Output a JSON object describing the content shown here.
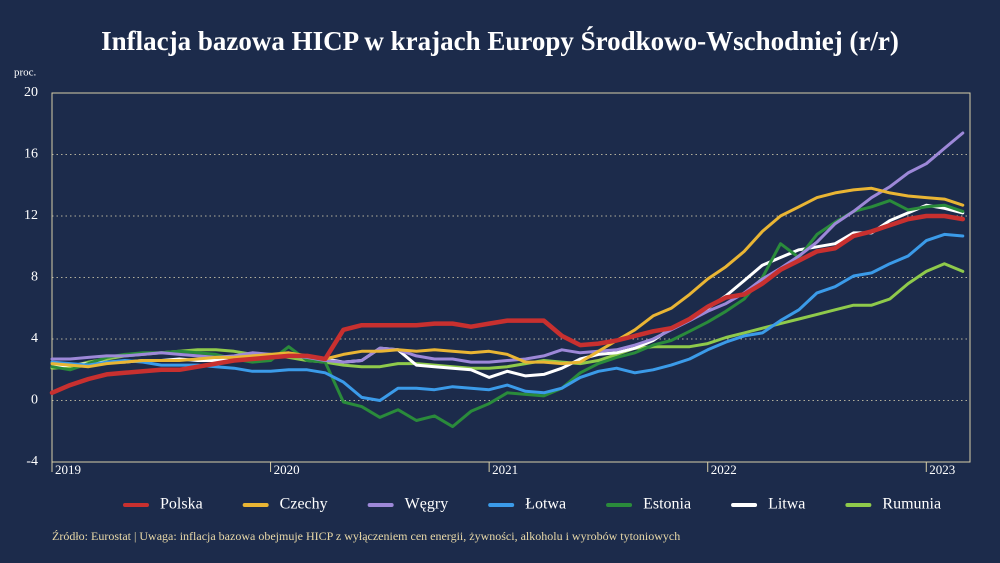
{
  "chart_data": {
    "type": "line",
    "title": "Inflacja bazowa HICP w krajach Europy Środkowo-Wschodniej (r/r)",
    "y_label": "proc.",
    "source": "Źródło: Eurostat  |  Uwaga: inflacja bazowa obejmuje HICP z wyłączeniem cen energii, żywności, alkoholu i wyrobów tytoniowych",
    "x": [
      2019,
      2019.083,
      2019.167,
      2019.25,
      2019.333,
      2019.417,
      2019.5,
      2019.583,
      2019.667,
      2019.75,
      2019.833,
      2019.917,
      2020,
      2020.083,
      2020.167,
      2020.25,
      2020.333,
      2020.417,
      2020.5,
      2020.583,
      2020.667,
      2020.75,
      2020.833,
      2020.917,
      2021,
      2021.083,
      2021.167,
      2021.25,
      2021.333,
      2021.417,
      2021.5,
      2021.583,
      2021.667,
      2021.75,
      2021.833,
      2021.917,
      2022,
      2022.083,
      2022.167,
      2022.25,
      2022.333,
      2022.417,
      2022.5,
      2022.583,
      2022.667,
      2022.75,
      2022.833,
      2022.917,
      2023,
      2023.083,
      2023.167
    ],
    "xlim": [
      2019,
      2023.2
    ],
    "xticks": [
      2019,
      2020,
      2021,
      2022,
      2023
    ],
    "ylim": [
      -4,
      20
    ],
    "yticks": [
      -4,
      0,
      4,
      8,
      12,
      16,
      20
    ],
    "grid": true,
    "series": [
      {
        "name": "Polska",
        "color": "#c8302f",
        "values": [
          0.5,
          1.0,
          1.4,
          1.7,
          1.8,
          1.9,
          2.0,
          2.0,
          2.2,
          2.4,
          2.6,
          2.7,
          2.8,
          2.9,
          2.9,
          2.7,
          4.6,
          4.9,
          4.9,
          4.9,
          4.9,
          5.0,
          5.0,
          4.8,
          5.0,
          5.2,
          5.2,
          5.2,
          4.2,
          3.6,
          3.7,
          3.9,
          4.2,
          4.5,
          4.7,
          5.3,
          6.1,
          6.7,
          6.9,
          7.6,
          8.5,
          9.1,
          9.7,
          9.9,
          10.7,
          11.0,
          11.4,
          11.8,
          12.0,
          12.0,
          11.8
        ]
      },
      {
        "name": "Czechy",
        "color": "#e9b534",
        "values": [
          2.4,
          2.3,
          2.2,
          2.4,
          2.5,
          2.6,
          2.6,
          2.6,
          2.7,
          2.8,
          2.8,
          2.9,
          3.0,
          3.1,
          2.9,
          2.7,
          3.0,
          3.2,
          3.2,
          3.3,
          3.2,
          3.3,
          3.2,
          3.1,
          3.2,
          3.0,
          2.5,
          2.5,
          2.4,
          2.5,
          3.2,
          3.9,
          4.6,
          5.5,
          6.0,
          6.9,
          7.9,
          8.7,
          9.7,
          11.0,
          12.0,
          12.6,
          13.2,
          13.5,
          13.7,
          13.8,
          13.5,
          13.3,
          13.2,
          13.1,
          12.7
        ]
      },
      {
        "name": "Węgry",
        "color": "#9d88d8",
        "values": [
          2.7,
          2.7,
          2.8,
          2.9,
          2.9,
          3.0,
          3.1,
          3.0,
          2.9,
          2.8,
          2.9,
          3.1,
          3.0,
          2.9,
          2.8,
          2.6,
          2.5,
          2.6,
          3.4,
          3.3,
          2.9,
          2.7,
          2.7,
          2.5,
          2.5,
          2.6,
          2.7,
          2.9,
          3.3,
          3.1,
          3.2,
          3.3,
          3.6,
          4.0,
          4.6,
          5.2,
          5.8,
          6.3,
          7.0,
          7.9,
          8.6,
          9.4,
          10.3,
          11.5,
          12.3,
          13.2,
          13.9,
          14.8,
          15.4,
          16.4,
          17.4
        ]
      },
      {
        "name": "Łotwa",
        "color": "#3b9be9",
        "values": [
          2.5,
          2.4,
          2.3,
          2.5,
          2.6,
          2.5,
          2.3,
          2.3,
          2.3,
          2.2,
          2.1,
          1.9,
          1.9,
          2.0,
          2.0,
          1.8,
          1.2,
          0.2,
          0.0,
          0.8,
          0.8,
          0.7,
          0.9,
          0.8,
          0.7,
          1.0,
          0.6,
          0.5,
          0.8,
          1.5,
          1.9,
          2.1,
          1.8,
          2.0,
          2.3,
          2.7,
          3.3,
          3.8,
          4.2,
          4.4,
          5.2,
          5.9,
          7.0,
          7.4,
          8.1,
          8.3,
          8.9,
          9.4,
          10.4,
          10.8,
          10.7
        ]
      },
      {
        "name": "Estonia",
        "color": "#2a8b3b",
        "values": [
          2.2,
          2.0,
          2.4,
          2.8,
          3.0,
          3.1,
          3.1,
          3.2,
          3.1,
          3.0,
          2.7,
          2.5,
          2.6,
          3.5,
          2.6,
          2.5,
          -0.1,
          -0.4,
          -1.1,
          -0.6,
          -1.3,
          -1.0,
          -1.7,
          -0.7,
          -0.2,
          0.5,
          0.4,
          0.3,
          0.8,
          1.8,
          2.4,
          2.8,
          3.1,
          3.6,
          3.9,
          4.5,
          5.1,
          5.8,
          6.6,
          8.0,
          10.2,
          9.3,
          10.8,
          11.6,
          12.3,
          12.6,
          13.0,
          12.4,
          12.6,
          12.7,
          12.3
        ]
      },
      {
        "name": "Litwa",
        "color": "#ffffff",
        "values": [
          2.2,
          2.3,
          2.4,
          2.5,
          2.5,
          2.6,
          2.6,
          2.7,
          2.6,
          2.6,
          2.7,
          2.7,
          2.8,
          2.9,
          2.9,
          2.7,
          2.5,
          2.6,
          3.4,
          3.3,
          2.3,
          2.2,
          2.1,
          2.0,
          1.5,
          1.9,
          1.6,
          1.7,
          2.1,
          2.7,
          3.0,
          3.1,
          3.4,
          3.9,
          4.7,
          5.3,
          6.0,
          6.8,
          7.8,
          8.8,
          9.3,
          9.8,
          10.0,
          10.2,
          10.9,
          10.9,
          11.7,
          12.2,
          12.7,
          12.5,
          12.2
        ]
      },
      {
        "name": "Rumunia",
        "color": "#8fca4b",
        "values": [
          2.1,
          2.2,
          2.5,
          2.7,
          2.9,
          3.0,
          3.1,
          3.2,
          3.3,
          3.3,
          3.2,
          3.0,
          3.0,
          2.8,
          2.6,
          2.5,
          2.3,
          2.2,
          2.2,
          2.4,
          2.4,
          2.3,
          2.2,
          2.1,
          2.1,
          2.2,
          2.4,
          2.6,
          2.5,
          2.4,
          2.6,
          3.0,
          3.4,
          3.5,
          3.5,
          3.5,
          3.7,
          4.1,
          4.4,
          4.7,
          5.0,
          5.3,
          5.6,
          5.9,
          6.2,
          6.2,
          6.6,
          7.6,
          8.4,
          8.9,
          8.4
        ]
      }
    ]
  }
}
